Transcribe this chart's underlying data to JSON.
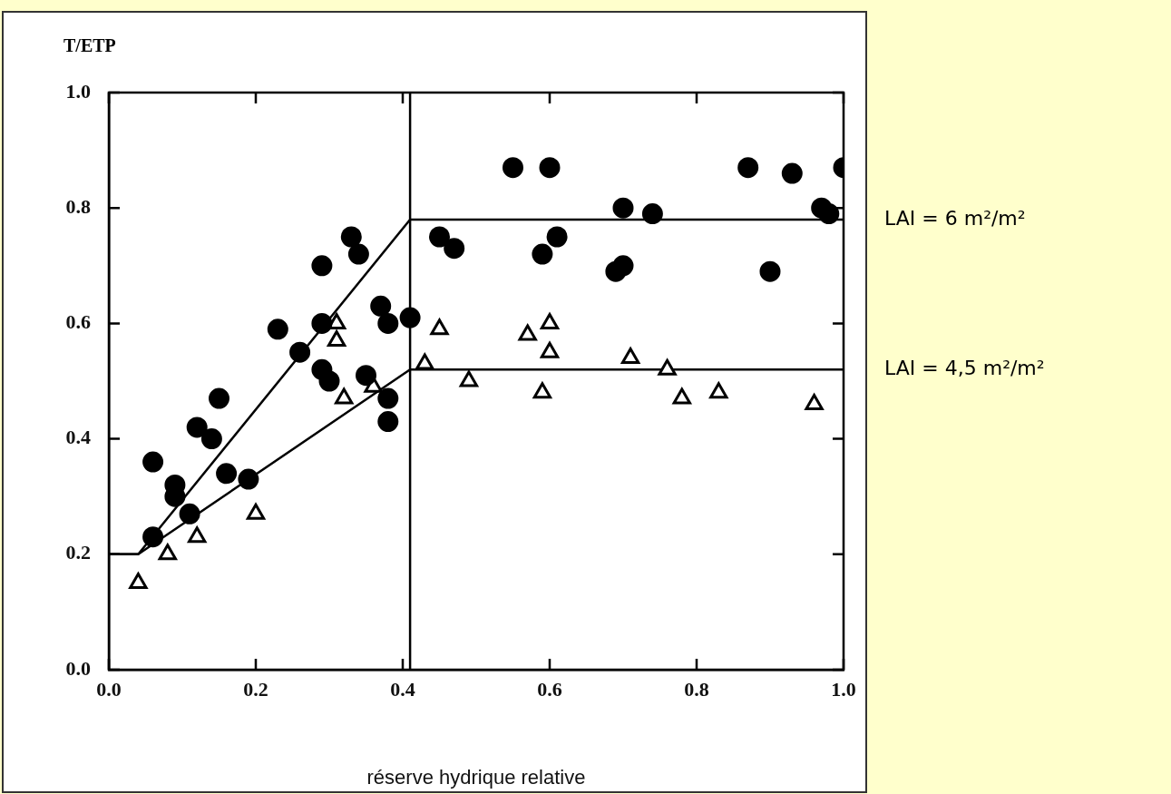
{
  "chart_data": {
    "type": "scatter",
    "ylabel": "T/ETP",
    "xlabel": "réserve hydrique relative",
    "xlim": [
      0,
      1.0
    ],
    "ylim": [
      0,
      1.0
    ],
    "xticks": [
      {
        "value": 0,
        "label": "0.0"
      },
      {
        "value": 0.2,
        "label": "0.2"
      },
      {
        "value": 0.4,
        "label": "0.4"
      },
      {
        "value": 0.6,
        "label": "0.6"
      },
      {
        "value": 0.8,
        "label": "0.8"
      },
      {
        "value": 1.0,
        "label": "1.0"
      }
    ],
    "yticks": [
      {
        "value": 0,
        "label": "0.0"
      },
      {
        "value": 0.2,
        "label": "0.2"
      },
      {
        "value": 0.4,
        "label": "0.4"
      },
      {
        "value": 0.6,
        "label": "0.6"
      },
      {
        "value": 0.8,
        "label": "0.8"
      },
      {
        "value": 1.0,
        "label": "1.0"
      }
    ],
    "grid": false,
    "legend": false,
    "series": [
      {
        "type": "scatter",
        "marker": "circle",
        "color": "#000000",
        "x": [
          0.55,
          0.6,
          0.45,
          0.47,
          0.61,
          0.59,
          0.69,
          0.7,
          0.7,
          0.74,
          0.87,
          0.93,
          1.0,
          0.97,
          0.98,
          0.9,
          0.23,
          0.29,
          0.37,
          0.38,
          0.41,
          0.26,
          0.29,
          0.3,
          0.35,
          0.38,
          0.38,
          0.15,
          0.12,
          0.14,
          0.06,
          0.09,
          0.09,
          0.11,
          0.06,
          0.16,
          0.19,
          0.29,
          0.33,
          0.34
        ],
        "values": [
          0.87,
          0.87,
          0.75,
          0.73,
          0.75,
          0.72,
          0.69,
          0.7,
          0.8,
          0.79,
          0.87,
          0.86,
          0.87,
          0.8,
          0.79,
          0.69,
          0.59,
          0.6,
          0.63,
          0.6,
          0.61,
          0.55,
          0.52,
          0.5,
          0.51,
          0.47,
          0.43,
          0.47,
          0.42,
          0.4,
          0.36,
          0.32,
          0.3,
          0.27,
          0.23,
          0.34,
          0.33,
          0.7,
          0.75,
          0.72
        ]
      },
      {
        "type": "scatter",
        "marker": "triangle",
        "color": "#000000",
        "x": [
          0.45,
          0.57,
          0.6,
          0.6,
          0.43,
          0.49,
          0.59,
          0.71,
          0.76,
          0.78,
          0.83,
          0.96,
          0.31,
          0.31,
          0.32,
          0.36,
          0.2,
          0.12,
          0.08,
          0.04
        ],
        "values": [
          0.59,
          0.58,
          0.6,
          0.55,
          0.53,
          0.5,
          0.48,
          0.54,
          0.52,
          0.47,
          0.48,
          0.46,
          0.6,
          0.57,
          0.47,
          0.49,
          0.27,
          0.23,
          0.2,
          0.15
        ]
      },
      {
        "type": "line",
        "marker": "none",
        "line_style": "solid",
        "color": "#000000",
        "x": [
          0,
          0.04,
          0.41,
          1.0
        ],
        "values": [
          0.2,
          0.2,
          0.78,
          0.78
        ]
      },
      {
        "type": "line",
        "marker": "none",
        "line_style": "solid",
        "color": "#000000",
        "x": [
          0,
          0.04,
          0.41,
          1.0
        ],
        "values": [
          0.2,
          0.2,
          0.52,
          0.52
        ]
      }
    ],
    "ref_lines": [
      {
        "axis": "x",
        "value": 0.41,
        "color": "#000000"
      }
    ],
    "annotations": [
      {
        "text": "LAI = 6 m²/m²",
        "x": 1.0,
        "y": 0.78
      },
      {
        "text": "LAI = 4,5 m²/m²",
        "x": 1.0,
        "y": 0.52
      }
    ]
  }
}
